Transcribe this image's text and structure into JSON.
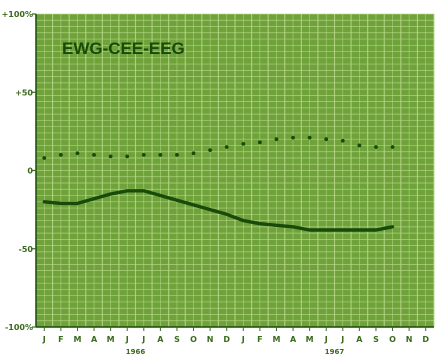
{
  "title": "EWG-CEE-EEG",
  "colors": {
    "background": "#6fa23a",
    "grid": "#b9d98a",
    "ink": "#184a0a",
    "label": "#3a6a1c",
    "page": "#ffffff"
  },
  "chart_data": {
    "type": "line",
    "title": "EWG-CEE-EEG",
    "xlabel": "",
    "ylabel": "",
    "ylim": [
      -100,
      100
    ],
    "y_ticks": [
      {
        "value": 100,
        "label": "+100%"
      },
      {
        "value": 50,
        "label": "+50"
      },
      {
        "value": 0,
        "label": "0"
      },
      {
        "value": -50,
        "label": "-50"
      },
      {
        "value": -100,
        "label": "-100%"
      }
    ],
    "categories": [
      "J",
      "F",
      "M",
      "A",
      "M",
      "J",
      "J",
      "A",
      "S",
      "O",
      "N",
      "D",
      "J",
      "F",
      "M",
      "A",
      "M",
      "J",
      "J",
      "A",
      "S",
      "O",
      "N",
      "D"
    ],
    "year_labels": [
      {
        "label": "1966",
        "month_index": 5.5
      },
      {
        "label": "1967",
        "month_index": 17.5
      }
    ],
    "grid": true,
    "series": [
      {
        "style": "dotted",
        "values": [
          8,
          10,
          11,
          10,
          9,
          9,
          10,
          10,
          10,
          11,
          13,
          15,
          17,
          18,
          20,
          21,
          21,
          20,
          19,
          16,
          15,
          15,
          null,
          null
        ]
      },
      {
        "style": "solid",
        "values": [
          -20,
          -21,
          -21,
          -18,
          -15,
          -13,
          -13,
          -16,
          -19,
          -22,
          -25,
          -28,
          -32,
          -34,
          -35,
          -36,
          -38,
          -38,
          -38,
          -38,
          -38,
          -36,
          null,
          null
        ]
      }
    ]
  }
}
